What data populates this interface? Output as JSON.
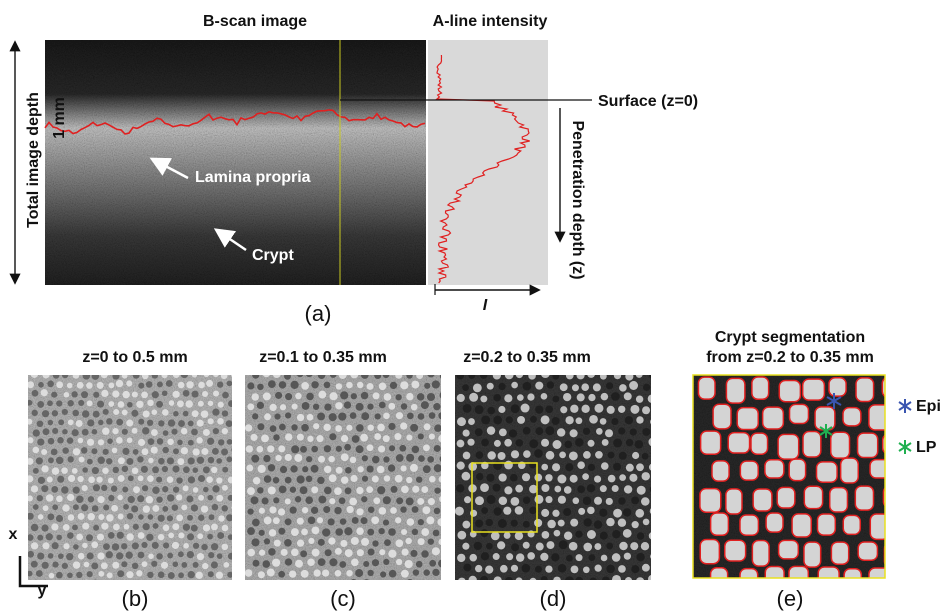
{
  "panel_a": {
    "bscan_title": "B-scan image",
    "aline_title": "A-line intensity",
    "depth_label": "Total image depth",
    "depth_value": "1 mm",
    "lamina_label": "Lamina propria",
    "crypt_label": "Crypt",
    "surface_label": "Surface (z=0)",
    "penetration_label": "Penetration depth (z)",
    "intensity_label": "I",
    "caption": "(a)"
  },
  "panels": [
    {
      "title": "z=0 to 0.5 mm",
      "caption": "(b)"
    },
    {
      "title": "z=0.1 to 0.35 mm",
      "caption": "(c)"
    },
    {
      "title": "z=0.2 to 0.35 mm",
      "caption": "(d)"
    },
    {
      "title_line1": "Crypt segmentation",
      "title_line2": "from z=0.2 to 0.35 mm",
      "caption": "(e)",
      "legend": [
        "Epi",
        "LP"
      ]
    }
  ],
  "axes": {
    "x": "x",
    "y": "y"
  }
}
